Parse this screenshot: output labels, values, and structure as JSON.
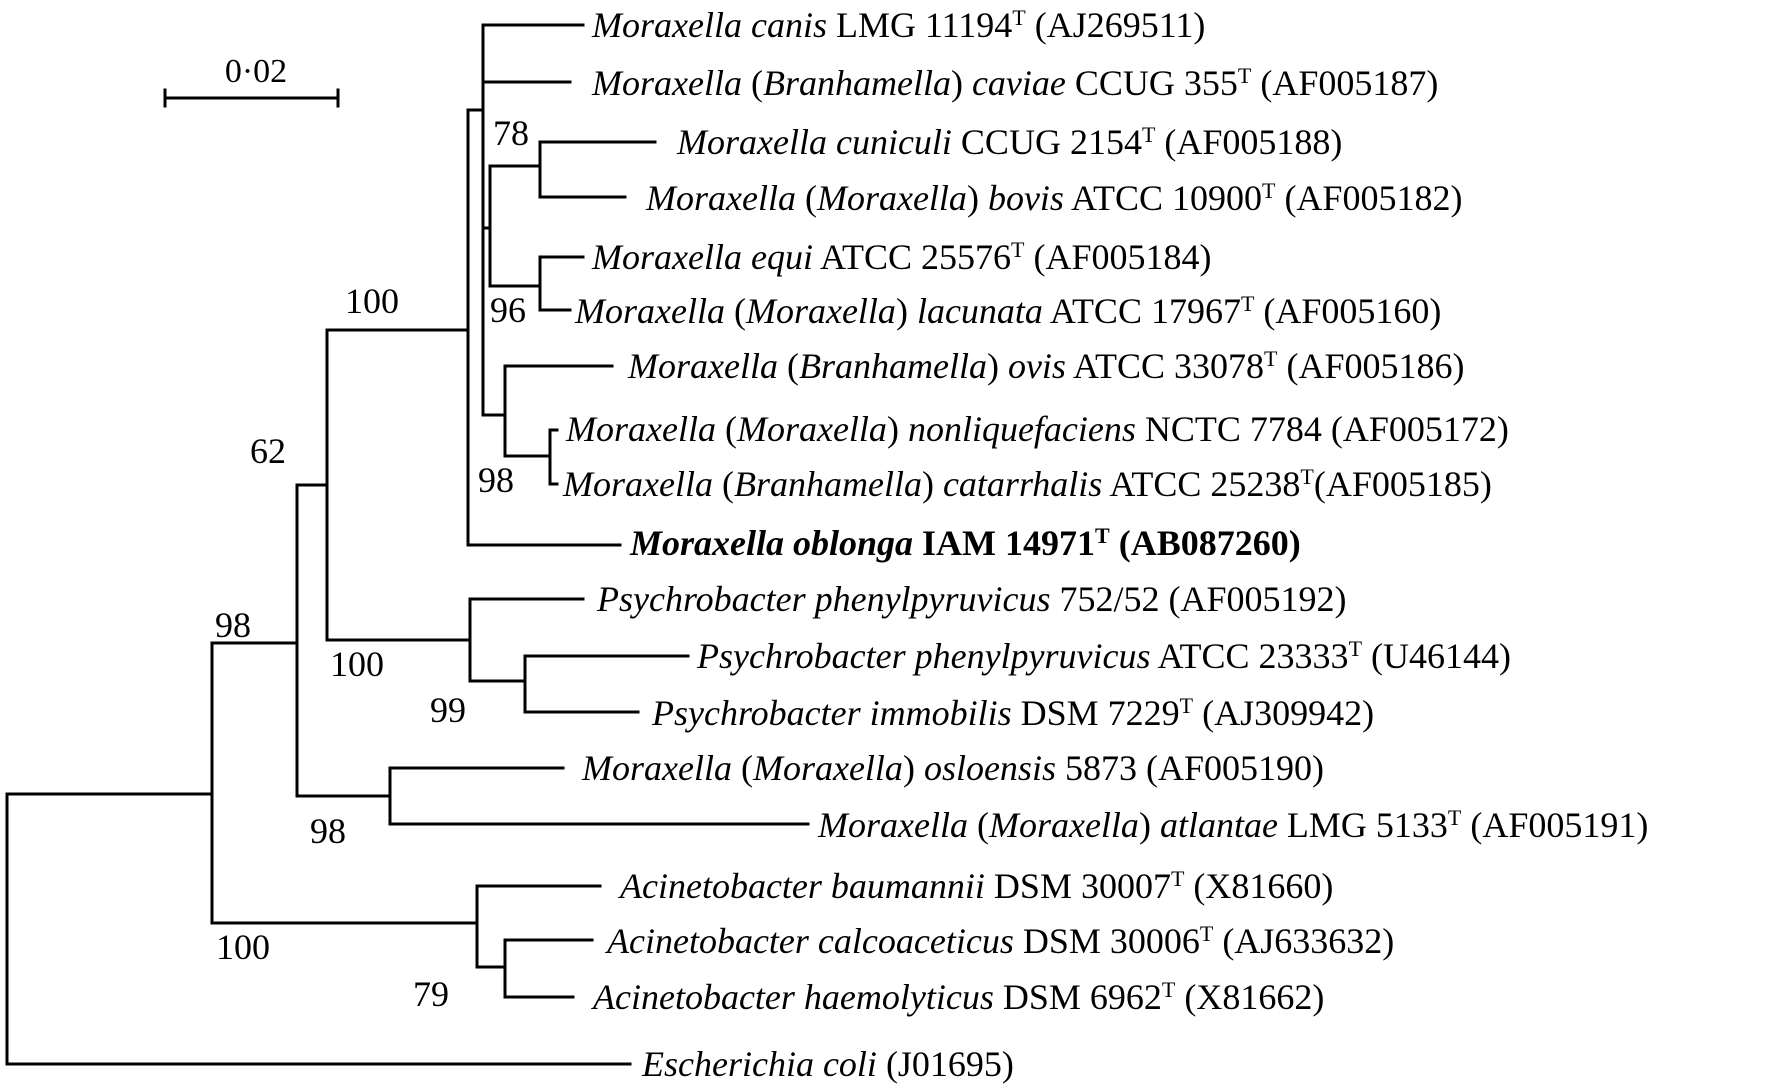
{
  "scale_bar": {
    "label": "0·02"
  },
  "leaves": [
    {
      "id": "canis",
      "parts": [
        {
          "t": "Moraxella canis",
          "i": true
        },
        {
          "t": " LMG 11194"
        },
        {
          "t": "T",
          "sup": true
        },
        {
          "t": " (AJ269511)"
        }
      ]
    },
    {
      "id": "caviae",
      "parts": [
        {
          "t": "Moraxella",
          "i": true
        },
        {
          "t": " ("
        },
        {
          "t": "Branhamella",
          "i": true
        },
        {
          "t": ") "
        },
        {
          "t": "caviae",
          "i": true
        },
        {
          "t": " CCUG 355"
        },
        {
          "t": "T",
          "sup": true
        },
        {
          "t": " (AF005187)"
        }
      ]
    },
    {
      "id": "cuniculi",
      "parts": [
        {
          "t": "Moraxella cuniculi",
          "i": true
        },
        {
          "t": " CCUG 2154"
        },
        {
          "t": "T",
          "sup": true
        },
        {
          "t": " (AF005188)"
        }
      ]
    },
    {
      "id": "bovis",
      "parts": [
        {
          "t": "Moraxella",
          "i": true
        },
        {
          "t": " ("
        },
        {
          "t": "Moraxella",
          "i": true
        },
        {
          "t": ") "
        },
        {
          "t": "bovis",
          "i": true
        },
        {
          "t": " ATCC 10900"
        },
        {
          "t": "T",
          "sup": true
        },
        {
          "t": " (AF005182)"
        }
      ]
    },
    {
      "id": "equi",
      "parts": [
        {
          "t": "Moraxella equi",
          "i": true
        },
        {
          "t": " ATCC 25576"
        },
        {
          "t": "T",
          "sup": true
        },
        {
          "t": " (AF005184)"
        }
      ]
    },
    {
      "id": "lacunata",
      "parts": [
        {
          "t": "Moraxella",
          "i": true
        },
        {
          "t": " ("
        },
        {
          "t": "Moraxella",
          "i": true
        },
        {
          "t": ") "
        },
        {
          "t": "lacunata",
          "i": true
        },
        {
          "t": " ATCC 17967"
        },
        {
          "t": "T",
          "sup": true
        },
        {
          "t": " (AF005160)"
        }
      ]
    },
    {
      "id": "ovis",
      "parts": [
        {
          "t": "Moraxella",
          "i": true
        },
        {
          "t": " ("
        },
        {
          "t": "Branhamella",
          "i": true
        },
        {
          "t": ") "
        },
        {
          "t": "ovis",
          "i": true
        },
        {
          "t": " ATCC 33078"
        },
        {
          "t": "T",
          "sup": true
        },
        {
          "t": " (AF005186)"
        }
      ]
    },
    {
      "id": "nonliquefaciens",
      "parts": [
        {
          "t": "Moraxella",
          "i": true
        },
        {
          "t": " ("
        },
        {
          "t": "Moraxella",
          "i": true
        },
        {
          "t": ") "
        },
        {
          "t": "nonliquefaciens",
          "i": true
        },
        {
          "t": " NCTC 7784 (AF005172)"
        }
      ]
    },
    {
      "id": "catarrhalis",
      "parts": [
        {
          "t": "Moraxella",
          "i": true
        },
        {
          "t": " ("
        },
        {
          "t": "Branhamella",
          "i": true
        },
        {
          "t": ") "
        },
        {
          "t": "catarrhalis",
          "i": true
        },
        {
          "t": " ATCC 25238"
        },
        {
          "t": "T",
          "sup": true
        },
        {
          "t": "(AF005185)"
        }
      ]
    },
    {
      "id": "oblonga",
      "bold": true,
      "parts": [
        {
          "t": "Moraxella oblonga",
          "i": true
        },
        {
          "t": " IAM 14971"
        },
        {
          "t": "T",
          "sup": true
        },
        {
          "t": " (AB087260)"
        }
      ]
    },
    {
      "id": "phenyl1",
      "parts": [
        {
          "t": "Psychrobacter phenylpyruvicus",
          "i": true
        },
        {
          "t": " 752/52 (AF005192)"
        }
      ]
    },
    {
      "id": "phenyl2",
      "parts": [
        {
          "t": "Psychrobacter phenylpyruvicus",
          "i": true
        },
        {
          "t": " ATCC 23333"
        },
        {
          "t": "T",
          "sup": true
        },
        {
          "t": " (U46144)"
        }
      ]
    },
    {
      "id": "immobilis",
      "parts": [
        {
          "t": "Psychrobacter immobilis",
          "i": true
        },
        {
          "t": " DSM 7229"
        },
        {
          "t": "T",
          "sup": true
        },
        {
          "t": " (AJ309942)"
        }
      ]
    },
    {
      "id": "osloensis",
      "parts": [
        {
          "t": "Moraxella",
          "i": true
        },
        {
          "t": " ("
        },
        {
          "t": "Moraxella",
          "i": true
        },
        {
          "t": ") "
        },
        {
          "t": "osloensis",
          "i": true
        },
        {
          "t": " 5873 (AF005190)"
        }
      ]
    },
    {
      "id": "atlantae",
      "parts": [
        {
          "t": "Moraxella",
          "i": true
        },
        {
          "t": " ("
        },
        {
          "t": "Moraxella",
          "i": true
        },
        {
          "t": ") "
        },
        {
          "t": "atlantae",
          "i": true
        },
        {
          "t": " LMG 5133"
        },
        {
          "t": "T",
          "sup": true
        },
        {
          "t": " (AF005191)"
        }
      ]
    },
    {
      "id": "baumannii",
      "parts": [
        {
          "t": "Acinetobacter baumannii",
          "i": true
        },
        {
          "t": " DSM 30007"
        },
        {
          "t": "T",
          "sup": true
        },
        {
          "t": " (X81660)"
        }
      ]
    },
    {
      "id": "calcoaceticus",
      "parts": [
        {
          "t": "Acinetobacter calcoaceticus",
          "i": true
        },
        {
          "t": " DSM 30006"
        },
        {
          "t": "T",
          "sup": true
        },
        {
          "t": " (AJ633632)"
        }
      ]
    },
    {
      "id": "haemolyticus",
      "parts": [
        {
          "t": "Acinetobacter haemolyticus",
          "i": true
        },
        {
          "t": " DSM 6962"
        },
        {
          "t": "T",
          "sup": true
        },
        {
          "t": " (X81662)"
        }
      ]
    },
    {
      "id": "ecoli",
      "parts": [
        {
          "t": "Escherichia coli",
          "i": true
        },
        {
          "t": " (J01695)"
        }
      ]
    }
  ],
  "bootstrap": {
    "cuniculi_bovis": "78",
    "equi_lacunata": "96",
    "ovis_group": "98",
    "moraxella_core": "100",
    "moraxella_psychrobacter": "62",
    "psychrobacter": "100",
    "psychrobacter_inner": "99",
    "osloensis_atlantae": "98",
    "ingroup": "98",
    "acinetobacter": "100",
    "acinetobacter_inner": "79"
  }
}
